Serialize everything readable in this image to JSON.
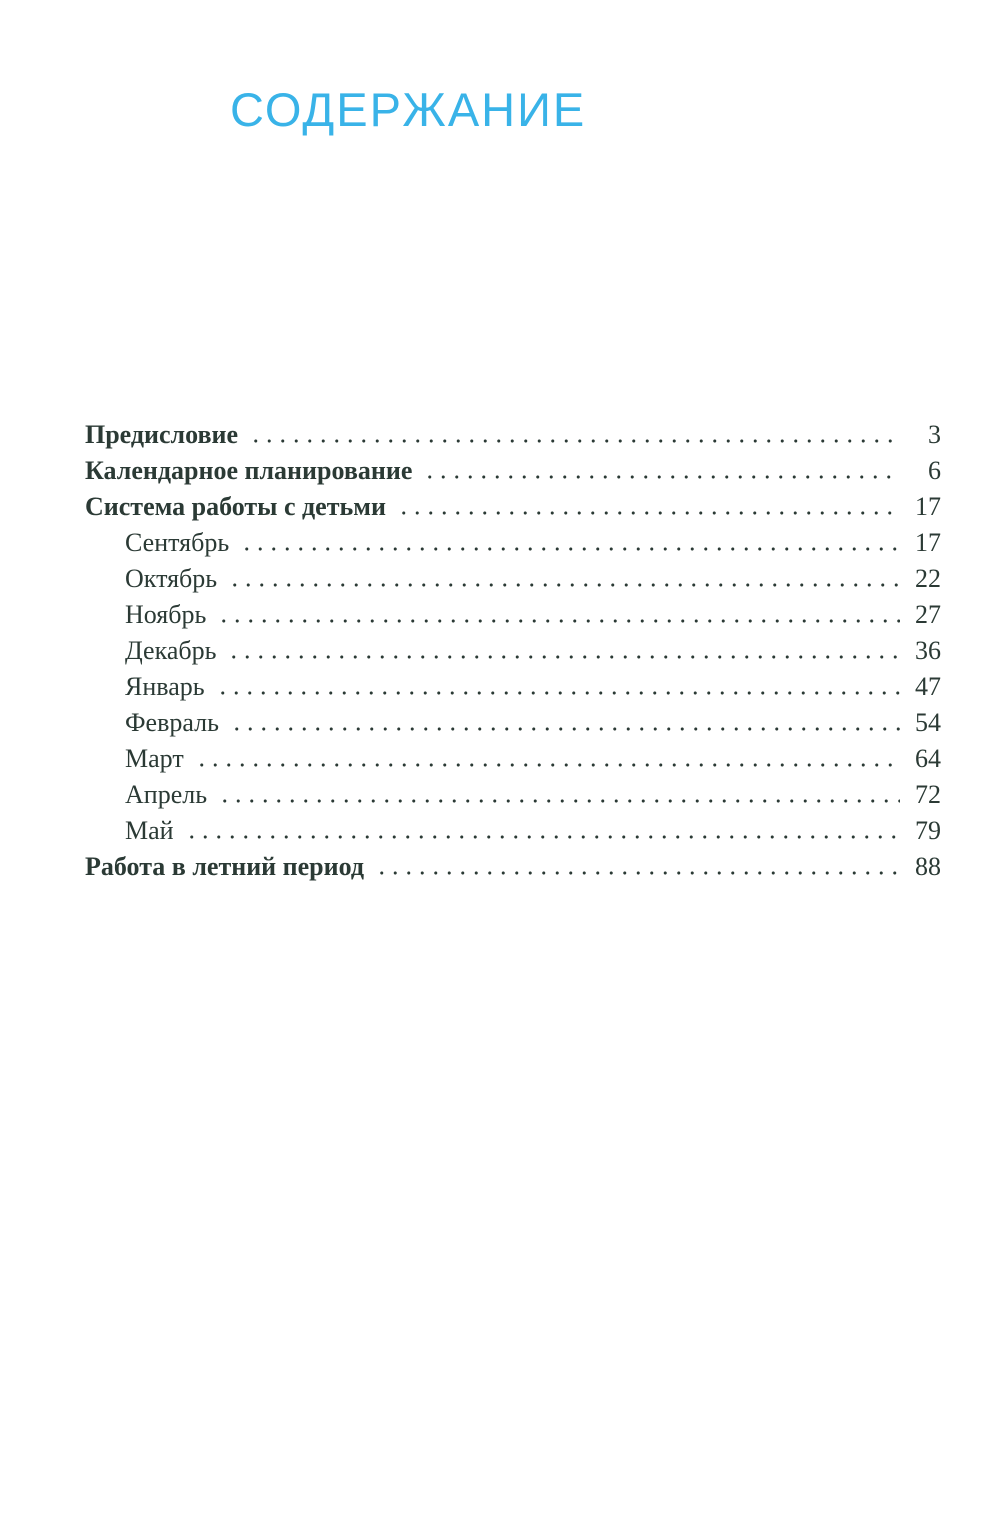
{
  "page": {
    "title": "СОДЕРЖАНИЕ"
  },
  "colors": {
    "accent": "#39b3e8",
    "text": "#2b3a35"
  },
  "toc": {
    "items": [
      {
        "label": "Предисловие",
        "page": "3",
        "style": "bold"
      },
      {
        "label": "Календарное планирование",
        "page": "6",
        "style": "bold"
      },
      {
        "label": "Система работы с детьми",
        "page": "17",
        "style": "bold"
      },
      {
        "label": "Сентябрь",
        "page": "17",
        "style": "indent"
      },
      {
        "label": "Октябрь",
        "page": "22",
        "style": "indent"
      },
      {
        "label": "Ноябрь",
        "page": "27",
        "style": "indent"
      },
      {
        "label": "Декабрь",
        "page": "36",
        "style": "indent"
      },
      {
        "label": "Январь",
        "page": "47",
        "style": "indent"
      },
      {
        "label": "Февраль",
        "page": "54",
        "style": "indent"
      },
      {
        "label": "Март",
        "page": "64",
        "style": "indent"
      },
      {
        "label": "Апрель",
        "page": "72",
        "style": "indent"
      },
      {
        "label": "Май",
        "page": "79",
        "style": "indent"
      },
      {
        "label": "Работа в летний период",
        "page": "88",
        "style": "bold"
      }
    ]
  }
}
